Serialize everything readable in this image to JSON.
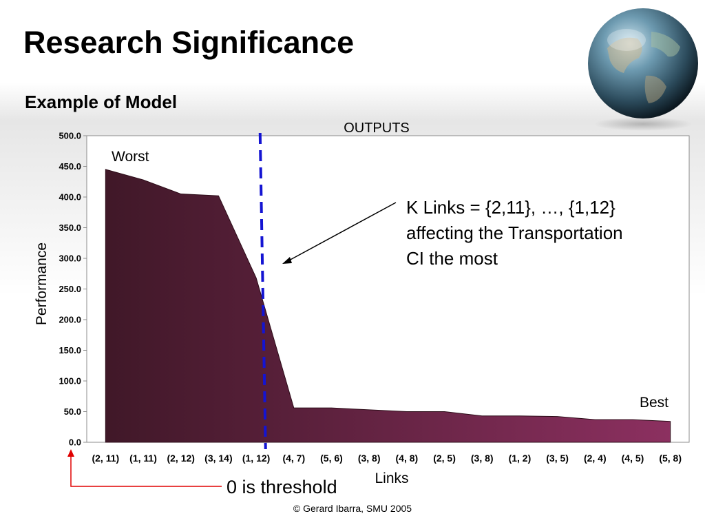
{
  "slide": {
    "title": "Research Significance",
    "subtitle": "Example of Model",
    "footer": "© Gerard Ibarra, SMU 2005"
  },
  "chart_data": {
    "type": "area",
    "title": "OUTPUTS",
    "xlabel": "Links",
    "ylabel": "Performance",
    "categories": [
      "(2, 11)",
      "(1, 11)",
      "(2, 12)",
      "(3, 14)",
      "(1, 12)",
      "(4, 7)",
      "(5, 6)",
      "(3, 8)",
      "(4, 8)",
      "(2, 5)",
      "(3, 8)",
      "(1, 2)",
      "(3, 5)",
      "(2, 4)",
      "(4, 5)",
      "(5, 8)"
    ],
    "series": [
      {
        "values": [
          445,
          428,
          405,
          402,
          268,
          56,
          56,
          53,
          50,
          50,
          43,
          43,
          42,
          37,
          37,
          34
        ]
      }
    ],
    "ylim": [
      0,
      500
    ],
    "yticks": [
      0,
      50,
      100,
      150,
      200,
      250,
      300,
      350,
      400,
      450,
      500
    ],
    "ytick_labels": [
      "0.0",
      "50.0",
      "100.0",
      "150.0",
      "200.0",
      "250.0",
      "300.0",
      "350.0",
      "400.0",
      "450.0",
      "500.0"
    ],
    "threshold_line": {
      "category_position": 4.75,
      "color": "#1414d2",
      "style": "dashed"
    },
    "fill_gradient": [
      "#401828",
      "#8c3060"
    ],
    "grid": false,
    "annotations": {
      "worst": "Worst",
      "best": "Best",
      "k_links_line1": "K Links = {2,11}, …, {1,12}",
      "k_links_line2": "affecting the Transportation",
      "k_links_line3": "CI the most",
      "threshold_note": "0 is threshold",
      "threshold_color": "#e00000"
    }
  }
}
